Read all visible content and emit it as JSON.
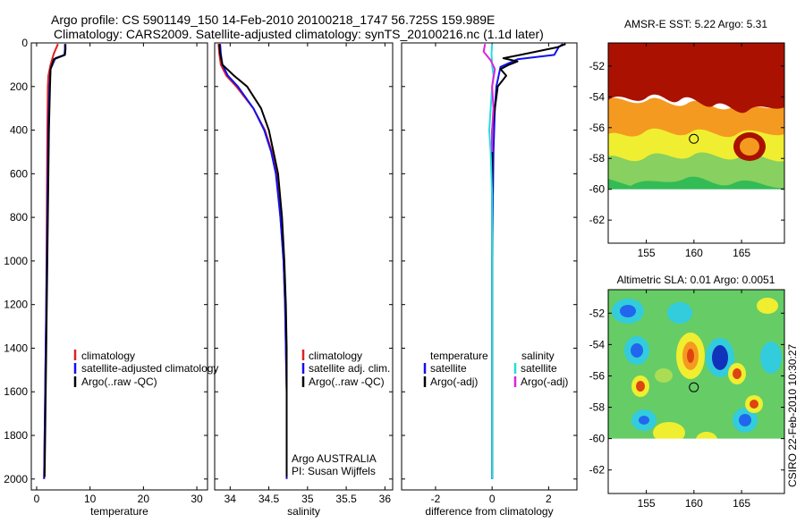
{
  "header": {
    "line1": "Argo profile: CS 5901149_150 14-Feb-2010 20100218_1747 56.725S 159.989E",
    "line2": "Climatology: CARS2009. Satellite-adjusted climatology: synTS_20100216.nc (1.1d later)"
  },
  "side_stamp": "CSIRO 22-Feb-2010 10:30:27",
  "credits": {
    "line1": "Argo AUSTRALIA",
    "line2": "PI: Susan Wijffels"
  },
  "colors": {
    "climatology": "#dd2222",
    "satellite": "#1111ee",
    "argo": "#000000",
    "satellite_sal_diff": "#22dddd",
    "argo_sal_diff": "#dd22dd"
  },
  "chart_data": [
    {
      "type": "line",
      "xlabel": "temperature",
      "ylim": [
        2050,
        0
      ],
      "yticks": [
        0,
        200,
        400,
        600,
        800,
        1000,
        1200,
        1400,
        1600,
        1800,
        2000
      ],
      "xlim": [
        -1,
        32
      ],
      "xticks": [
        0,
        10,
        20,
        30
      ],
      "legend": [
        "climatology",
        "satellite-adjusted climatology",
        "Argo(..raw -QC)"
      ],
      "series": [
        {
          "name": "climatology",
          "color": "#dd2222",
          "x": [
            4.0,
            3.2,
            2.6,
            2.2,
            2.1,
            2.05,
            2.0,
            1.95,
            1.9,
            1.85,
            1.8,
            1.7,
            1.6,
            1.5,
            1.4
          ],
          "y": [
            5,
            50,
            100,
            150,
            200,
            300,
            400,
            600,
            800,
            1000,
            1200,
            1400,
            1600,
            1800,
            2000
          ]
        },
        {
          "name": "satellite-adjusted climatology",
          "color": "#1111ee",
          "x": [
            5.3,
            5.3,
            5.2,
            3.5,
            2.6,
            2.4,
            2.3,
            2.2,
            2.1,
            2.0,
            1.9,
            1.8,
            1.7,
            1.6,
            1.5,
            1.4
          ],
          "y": [
            5,
            30,
            55,
            70,
            120,
            200,
            300,
            400,
            600,
            800,
            1000,
            1200,
            1400,
            1600,
            1800,
            2000
          ]
        },
        {
          "name": "Argo(..raw -QC)",
          "color": "#000000",
          "x": [
            5.4,
            5.4,
            5.3,
            3.2,
            2.6,
            2.5,
            2.4,
            2.3,
            2.2,
            2.1,
            2.0,
            1.9,
            1.8,
            1.7,
            1.6,
            1.5
          ],
          "y": [
            5,
            30,
            55,
            75,
            120,
            200,
            300,
            400,
            600,
            800,
            1000,
            1200,
            1400,
            1600,
            1800,
            1990
          ]
        }
      ]
    },
    {
      "type": "line",
      "xlabel": "salinity",
      "ylim": [
        2050,
        0
      ],
      "yticks": [
        0,
        200,
        400,
        600,
        800,
        1000,
        1200,
        1400,
        1600,
        1800,
        2000
      ],
      "xlim": [
        33.8,
        36.1
      ],
      "xticks": [
        34,
        34.5,
        35,
        35.5,
        36
      ],
      "legend": [
        "climatology",
        "satellite adj. clim.",
        "Argo(..raw -QC)"
      ],
      "series": [
        {
          "name": "climatology",
          "color": "#dd2222",
          "x": [
            33.85,
            33.86,
            33.88,
            33.95,
            34.08,
            34.3,
            34.45,
            34.54,
            34.6,
            34.65,
            34.69,
            34.71,
            34.72,
            34.73,
            34.73
          ],
          "y": [
            5,
            50,
            100,
            150,
            200,
            300,
            400,
            500,
            600,
            800,
            1000,
            1200,
            1400,
            1600,
            2000
          ]
        },
        {
          "name": "satellite adj. clim.",
          "color": "#1111ee",
          "x": [
            33.87,
            33.88,
            33.9,
            33.97,
            34.1,
            34.3,
            34.44,
            34.53,
            34.59,
            34.65,
            34.69,
            34.71,
            34.72,
            34.73,
            34.73
          ],
          "y": [
            5,
            50,
            100,
            150,
            200,
            300,
            400,
            500,
            600,
            800,
            1000,
            1200,
            1400,
            1600,
            2000
          ]
        },
        {
          "name": "Argo(..raw -QC)",
          "color": "#000000",
          "x": [
            33.86,
            33.87,
            33.9,
            34.05,
            34.22,
            34.4,
            34.5,
            34.56,
            34.62,
            34.67,
            34.7,
            34.72,
            34.73,
            34.73
          ],
          "y": [
            5,
            50,
            100,
            150,
            200,
            300,
            400,
            500,
            600,
            800,
            1000,
            1200,
            1400,
            1990
          ]
        }
      ]
    },
    {
      "type": "line",
      "xlabel": "difference from climatology",
      "ylim": [
        2050,
        0
      ],
      "yticks": [
        0,
        200,
        400,
        600,
        800,
        1000,
        1200,
        1400,
        1600,
        1800,
        2000
      ],
      "xlim": [
        -3.2,
        3.0
      ],
      "xticks": [
        -2,
        0,
        2
      ],
      "legend_left_title": "temperature",
      "legend_right_title": "salinity",
      "legend_left": [
        "satellite",
        "Argo(-adj)"
      ],
      "legend_right": [
        "satellite",
        "Argo(-adj)"
      ],
      "series": [
        {
          "name": "temperature satellite",
          "color": "#1111ee",
          "x": [
            2.5,
            2.35,
            2.2,
            0.9,
            0.3,
            0.15,
            0.1,
            0.05,
            0.02,
            0.0,
            0.0,
            0.0,
            0.0
          ],
          "y": [
            5,
            20,
            55,
            75,
            110,
            200,
            300,
            500,
            800,
            1000,
            1400,
            1800,
            2000
          ]
        },
        {
          "name": "temperature Argo(-adj)",
          "color": "#000000",
          "x": [
            2.6,
            2.3,
            1.0,
            0.4,
            0.9,
            0.6,
            0.3,
            0.5,
            0.2,
            0.1,
            0.0,
            0.0,
            0.0,
            0.0,
            0.0,
            0.0
          ],
          "y": [
            5,
            20,
            55,
            70,
            85,
            100,
            120,
            150,
            200,
            300,
            400,
            600,
            800,
            1000,
            1400,
            2000
          ]
        },
        {
          "name": "salinity satellite",
          "color": "#22dddd",
          "x": [
            0.0,
            -0.02,
            0.0,
            0.05,
            0.0,
            -0.05,
            -0.1,
            -0.05,
            0.0,
            0.0,
            0.0,
            0.0
          ],
          "y": [
            5,
            50,
            100,
            150,
            200,
            300,
            400,
            500,
            700,
            1000,
            1500,
            2000
          ]
        },
        {
          "name": "salinity Argo(-adj)",
          "color": "#dd22dd",
          "x": [
            -0.25,
            -0.3,
            -0.05,
            0.1,
            0.0,
            0.05,
            0.0,
            0.0
          ],
          "y": [
            5,
            40,
            80,
            120,
            200,
            300,
            400,
            500
          ]
        }
      ]
    },
    {
      "type": "heatmap",
      "title": "AMSR-E SST: 5.22 Argo: 5.31",
      "xlim": [
        151,
        169.5
      ],
      "xticks": [
        155,
        160,
        165
      ],
      "ylim": [
        -63.5,
        -50.5
      ],
      "yticks": [
        -62,
        -60,
        -58,
        -56,
        -54,
        -52
      ],
      "data_lat_range": [
        -60,
        -50.5
      ],
      "marker": {
        "lon": 159.989,
        "lat": -56.725
      }
    },
    {
      "type": "heatmap",
      "title": "Altimetric SLA: 0.01 Argo: 0.0051",
      "xlim": [
        151,
        169.5
      ],
      "xticks": [
        155,
        160,
        165
      ],
      "ylim": [
        -63.5,
        -50.5
      ],
      "yticks": [
        -62,
        -60,
        -58,
        -56,
        -54,
        -52
      ],
      "data_lat_range": [
        -60,
        -50.5
      ],
      "marker": {
        "lon": 159.989,
        "lat": -56.725
      }
    }
  ]
}
